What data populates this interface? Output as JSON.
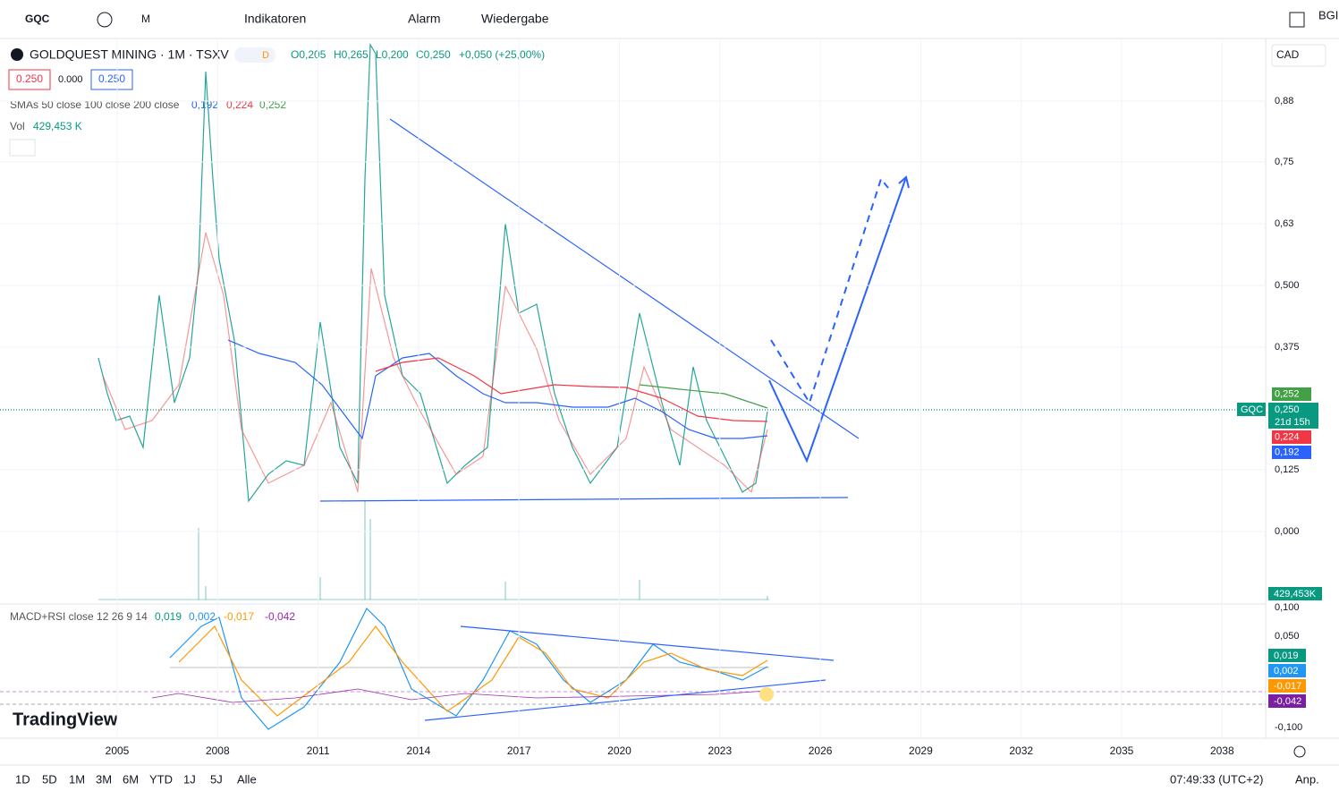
{
  "toolbar": {
    "symbol": "GQC",
    "interval": "M",
    "indicators": "Indikatoren",
    "alert": "Alarm",
    "replay": "Wiedergabe",
    "user": "BGI"
  },
  "legend": {
    "title": "GOLDQUEST MINING · 1M · TSXV",
    "badge": "D",
    "open": "O0,205",
    "high": "H0,265",
    "low": "L0,200",
    "close": "C0,250",
    "change": "+0,050 (+25,00%)",
    "bid": "0.250",
    "spread": "0.000",
    "ask": "0.250",
    "sma_label": "SMAs 50 close 100 close 200 close",
    "sma": [
      "0,192",
      "0,224",
      "0,252"
    ],
    "vol_label": "Vol",
    "vol": "429,453 K"
  },
  "currency": "CAD",
  "price_axis": [
    "0,88",
    "0,75",
    "0,63",
    "0,500",
    "0,375",
    "0,125",
    "0,000"
  ],
  "price_labels": {
    "sma200": "0,252",
    "symbol": "GQC",
    "last": "0,250",
    "countdown": "21d 15h",
    "sma100": "0,224",
    "sma50": "0,192",
    "volume": "429,453K"
  },
  "macd": {
    "label": "MACD+RSI close 12 26 9 14",
    "values": [
      "0,019",
      "0,002",
      "-0,017",
      "-0,042"
    ],
    "axis": [
      "0,100",
      "0,050",
      "-0,100"
    ]
  },
  "time_axis": [
    "2005",
    "2008",
    "2011",
    "2014",
    "2017",
    "2020",
    "2023",
    "2026",
    "2029",
    "2032",
    "2035",
    "2038"
  ],
  "logo": "TradingView",
  "ranges": [
    "1D",
    "5D",
    "1M",
    "3M",
    "6M",
    "YTD",
    "1J",
    "5J",
    "Alle"
  ],
  "clock": "07:49:33 (UTC+2)",
  "adjust": "Anp."
}
